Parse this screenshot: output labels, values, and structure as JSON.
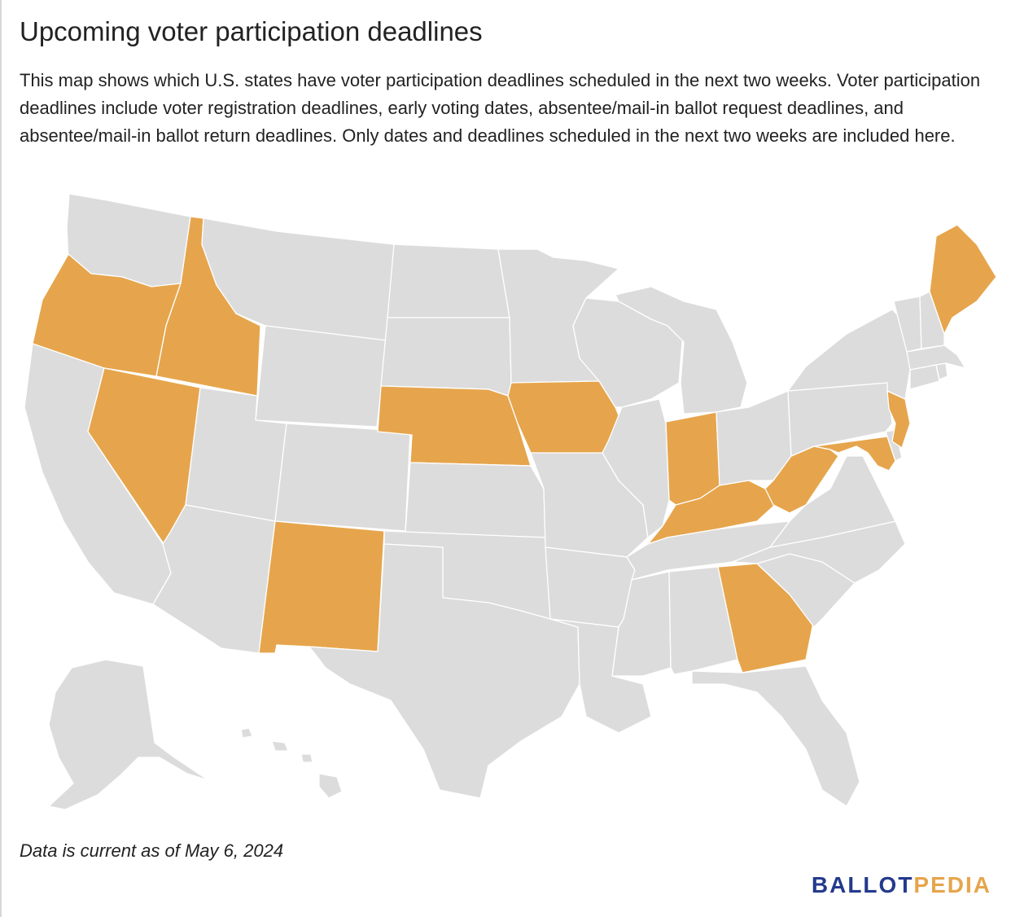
{
  "title": "Upcoming voter participation deadlines",
  "description": "This map shows which U.S. states have voter participation deadlines scheduled in the next two weeks. Voter participation deadlines include voter registration deadlines, early voting dates, absentee/mail-in ballot request deadlines, and absentee/mail-in ballot return deadlines. Only dates and deadlines scheduled in the next two weeks are included here.",
  "footnote": "Data is current as of May 6, 2024",
  "logo": {
    "part1": "BALLOT",
    "part2": "PEDIA"
  },
  "colors": {
    "highlighted": "#e6a54c",
    "other": "#dcdcdc",
    "border": "#ffffff",
    "logo_primary": "#233a8c",
    "logo_accent": "#e6a54c"
  },
  "highlighted_states": [
    "Oregon",
    "Idaho",
    "Nevada",
    "New Mexico",
    "Nebraska",
    "Iowa",
    "Indiana",
    "Kentucky",
    "West Virginia",
    "Maryland",
    "New Jersey",
    "Georgia",
    "Maine"
  ]
}
